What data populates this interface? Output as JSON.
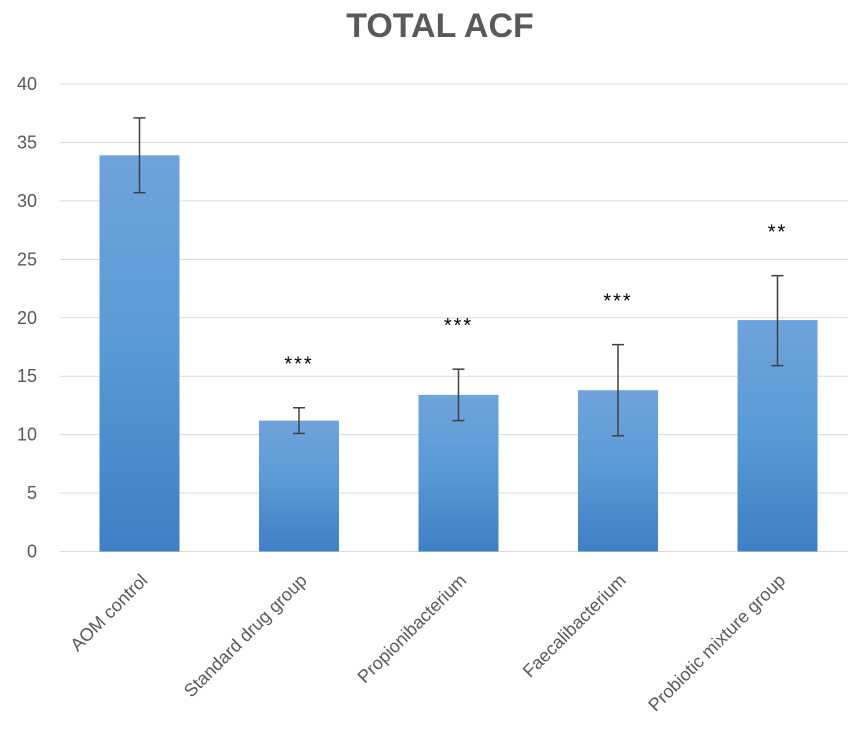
{
  "chart_data": {
    "type": "bar",
    "title": "TOTAL ACF",
    "xlabel": "",
    "ylabel": "",
    "ylim": [
      0,
      40
    ],
    "yticks": [
      0,
      5,
      10,
      15,
      20,
      25,
      30,
      35,
      40
    ],
    "grid": true,
    "legend": "none",
    "categories": [
      "AOM control",
      "Standard drug group",
      "Propionibacterium",
      "Faecalibacterium",
      "Probiotic mixture group"
    ],
    "values": [
      33.9,
      11.2,
      13.4,
      13.8,
      19.8
    ],
    "error_low": [
      30.7,
      10.1,
      11.2,
      9.9,
      15.9
    ],
    "error_high": [
      37.1,
      12.3,
      15.6,
      17.7,
      23.6
    ],
    "significance": [
      "",
      "***",
      "***",
      "***",
      "**"
    ],
    "colors": {
      "bar_top": "#6fa3dc",
      "bar_mid": "#5b9bd5",
      "bar_bottom": "#3f7fc4",
      "grid": "#d9d9d9",
      "text": "#595959"
    }
  }
}
